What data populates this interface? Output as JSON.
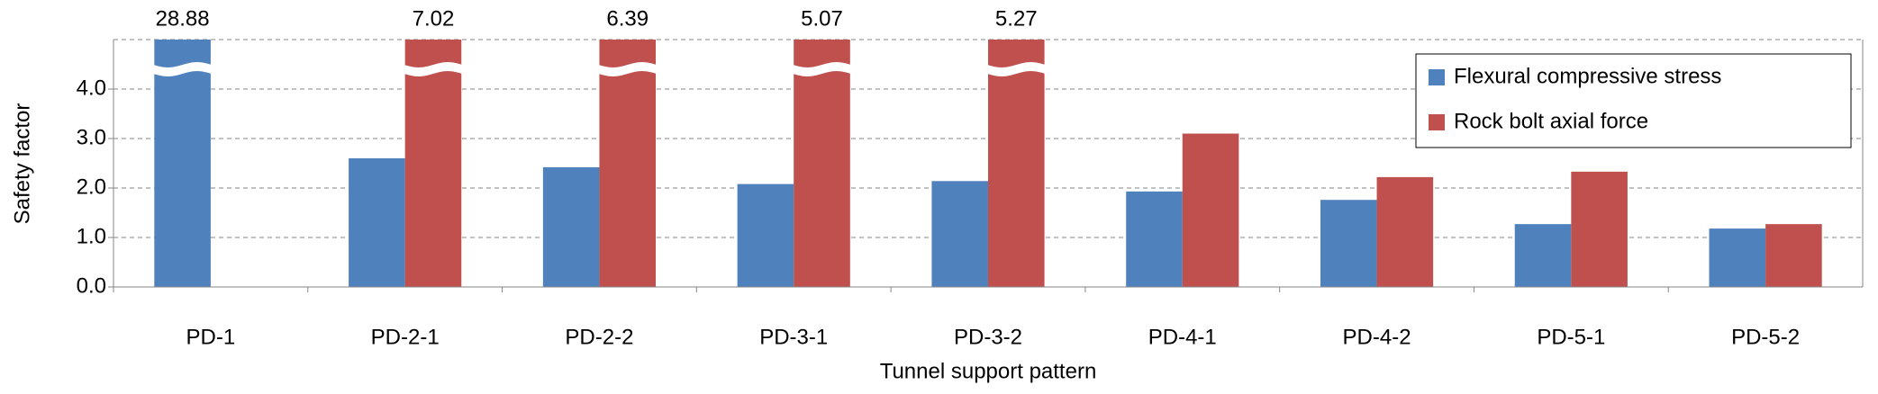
{
  "chart_data": {
    "type": "bar",
    "x_label": "Tunnel support pattern",
    "y_label": "Safety factor",
    "categories": [
      "PD-1",
      "PD-2-1",
      "PD-2-2",
      "PD-3-1",
      "PD-3-2",
      "PD-4-1",
      "PD-4-2",
      "PD-5-1",
      "PD-5-2"
    ],
    "series": [
      {
        "name": "Flexural compressive stress",
        "color": "#4f81bd",
        "values": [
          28.88,
          2.6,
          2.42,
          2.08,
          2.14,
          1.93,
          1.76,
          1.27,
          1.18
        ]
      },
      {
        "name": "Rock bolt axial force",
        "color": "#c0504d",
        "values": [
          null,
          7.02,
          6.39,
          5.07,
          5.27,
          3.1,
          2.22,
          2.33,
          1.27
        ]
      }
    ],
    "ylim": [
      0,
      5
    ],
    "yticks": [
      {
        "value": 0,
        "label": "0.0"
      },
      {
        "value": 1,
        "label": "1.0"
      },
      {
        "value": 2,
        "label": "2.0"
      },
      {
        "value": 3,
        "label": "3.0"
      },
      {
        "value": 4,
        "label": "4.0"
      }
    ],
    "grid": true,
    "axis_break": true,
    "legend": "upper right"
  }
}
